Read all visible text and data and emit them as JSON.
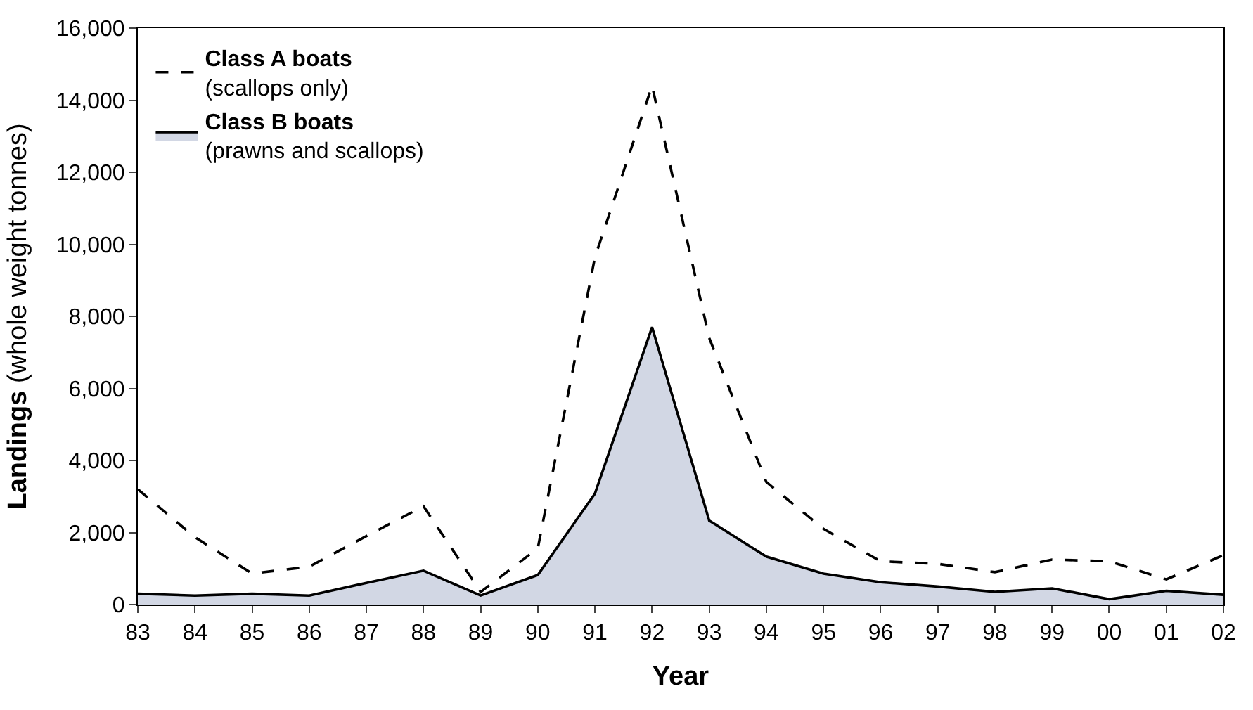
{
  "chart_data": {
    "type": "line",
    "xlabel": "Year",
    "ylabel": "Landings (whole weight tonnes)",
    "categories": [
      "83",
      "84",
      "85",
      "86",
      "87",
      "88",
      "89",
      "90",
      "91",
      "92",
      "93",
      "94",
      "95",
      "96",
      "97",
      "98",
      "99",
      "00",
      "01",
      "02"
    ],
    "ylim": [
      0,
      16000
    ],
    "yticks": [
      {
        "value": 0,
        "label": "0"
      },
      {
        "value": 2000,
        "label": "2,000"
      },
      {
        "value": 4000,
        "label": "4,000"
      },
      {
        "value": 6000,
        "label": "6,000"
      },
      {
        "value": 8000,
        "label": "8,000"
      },
      {
        "value": 10000,
        "label": "10,000"
      },
      {
        "value": 12000,
        "label": "12,000"
      },
      {
        "value": 14000,
        "label": "14,000"
      },
      {
        "value": 16000,
        "label": "16,000"
      }
    ],
    "legend": "top left",
    "marker": "none",
    "series": [
      {
        "name": "Class A boats\n(scallops only)",
        "line_style": "dashed",
        "color": "#000000",
        "values": [
          3200,
          1870,
          860,
          1050,
          1900,
          2730,
          350,
          1560,
          9640,
          14400,
          7400,
          3400,
          2100,
          1200,
          1130,
          900,
          1250,
          1200,
          700,
          1370
        ]
      },
      {
        "name": "Class B boats\n(prawns and scallops)",
        "type": "area",
        "line_style": "solid",
        "color": "#000000",
        "values": [
          300,
          250,
          300,
          250,
          600,
          940,
          250,
          820,
          3080,
          7700,
          2330,
          1330,
          860,
          620,
          500,
          350,
          450,
          150,
          380,
          270
        ]
      }
    ]
  }
}
